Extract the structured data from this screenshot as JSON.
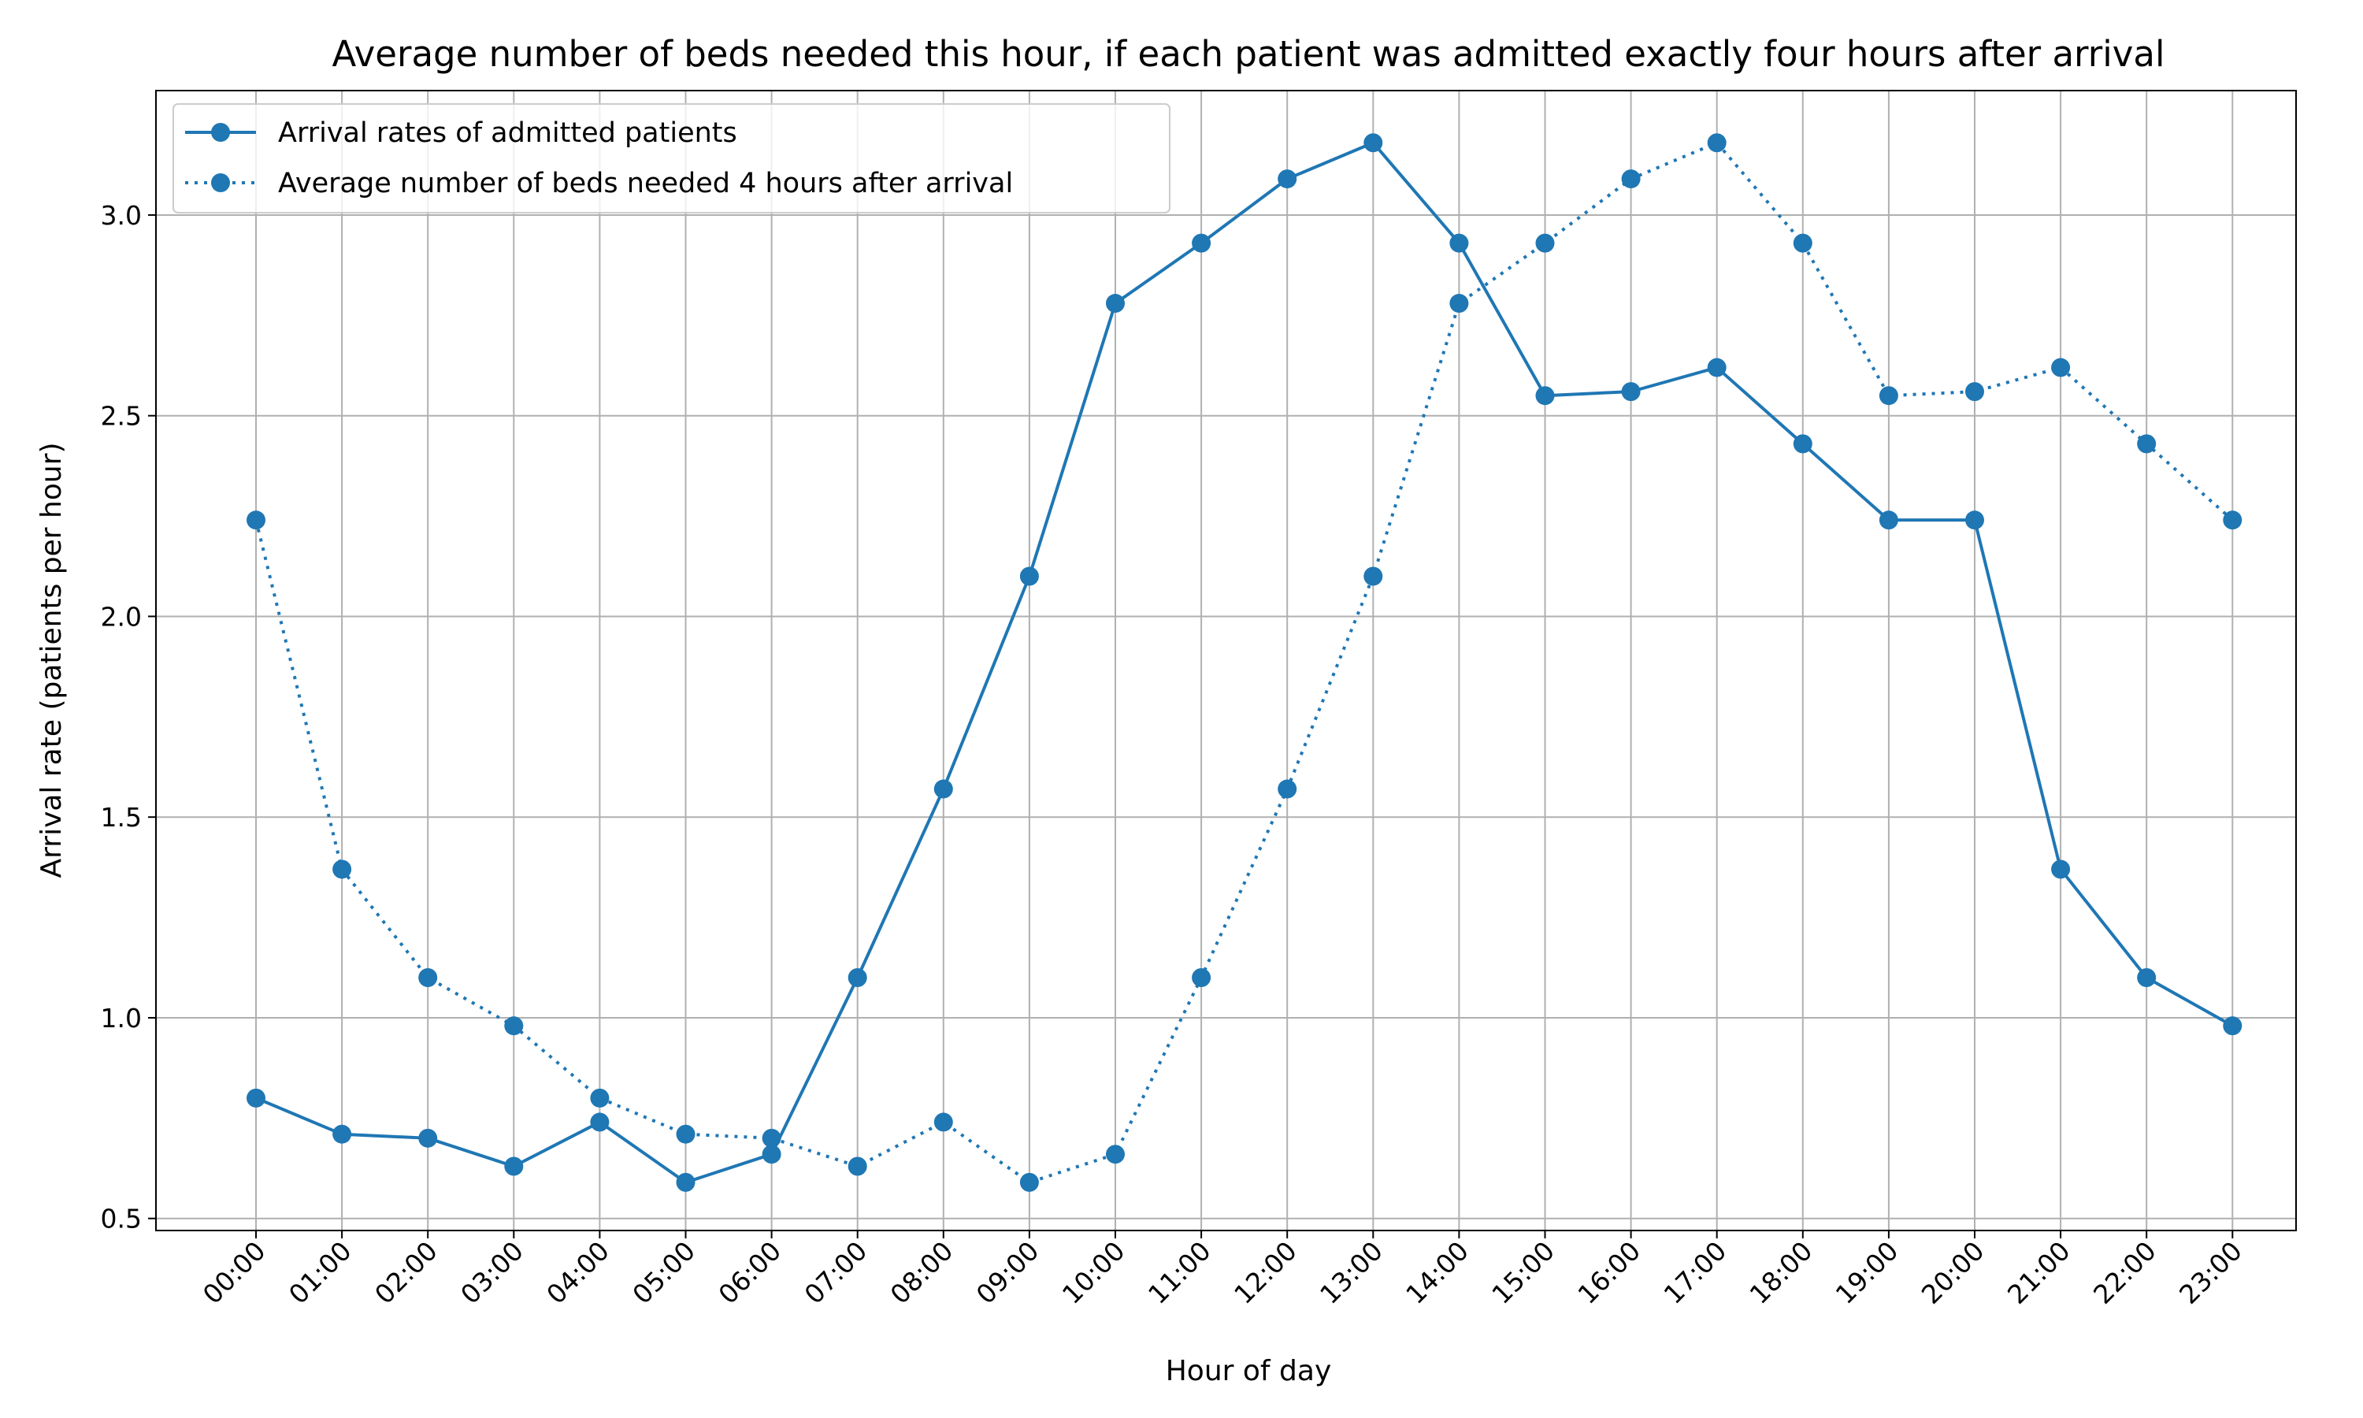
{
  "chart_data": {
    "type": "line",
    "title": "Average number of beds needed this hour, if each patient was admitted exactly four hours after arrival",
    "xlabel": "Hour of day",
    "ylabel": "Arrival rate (patients per hour)",
    "categories": [
      "00:00",
      "01:00",
      "02:00",
      "03:00",
      "04:00",
      "05:00",
      "06:00",
      "07:00",
      "08:00",
      "09:00",
      "10:00",
      "11:00",
      "12:00",
      "13:00",
      "14:00",
      "15:00",
      "16:00",
      "17:00",
      "18:00",
      "19:00",
      "20:00",
      "21:00",
      "22:00",
      "23:00"
    ],
    "ylim": [
      0.47,
      3.31
    ],
    "yticks": [
      0.5,
      1.0,
      1.5,
      2.0,
      2.5,
      3.0
    ],
    "ytick_labels": [
      "0.5",
      "1.0",
      "1.5",
      "2.0",
      "2.5",
      "3.0"
    ],
    "grid": true,
    "legend_position": "top-left",
    "series": [
      {
        "name": "Arrival rates of admitted patients",
        "style": "solid",
        "marker": "circle",
        "color": "#1f77b4",
        "values": [
          0.8,
          0.71,
          0.7,
          0.63,
          0.74,
          0.59,
          0.66,
          1.1,
          1.57,
          2.1,
          2.78,
          2.93,
          3.09,
          3.18,
          2.93,
          2.55,
          2.56,
          2.62,
          2.43,
          2.24,
          2.24,
          1.37,
          1.1,
          0.98
        ]
      },
      {
        "name": "Average number of beds needed 4 hours after arrival",
        "style": "dotted",
        "marker": "circle",
        "color": "#1f77b4",
        "values": [
          2.24,
          1.37,
          1.1,
          0.98,
          0.8,
          0.71,
          0.7,
          0.63,
          0.74,
          0.59,
          0.66,
          1.1,
          1.57,
          2.1,
          2.78,
          2.93,
          3.09,
          3.18,
          2.93,
          2.55,
          2.56,
          2.62,
          2.43,
          2.24
        ]
      }
    ]
  }
}
